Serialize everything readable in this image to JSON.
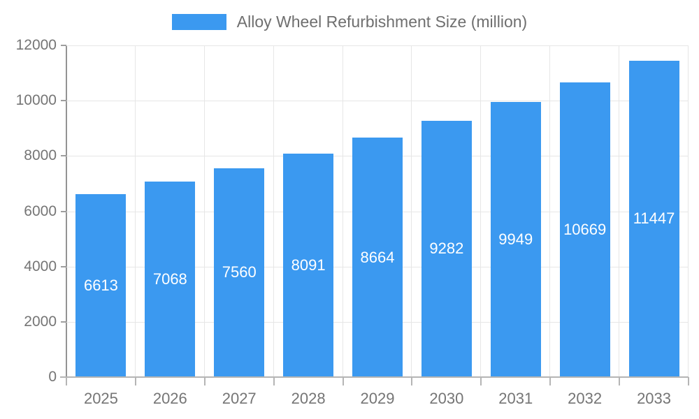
{
  "legend": {
    "label": "Alloy Wheel Refurbishment Size (million)"
  },
  "chart_data": {
    "type": "bar",
    "title": "Alloy Wheel Refurbishment Size (million)",
    "categories": [
      "2025",
      "2026",
      "2027",
      "2028",
      "2029",
      "2030",
      "2031",
      "2032",
      "2033"
    ],
    "values": [
      6613,
      7068,
      7560,
      8091,
      8664,
      9282,
      9949,
      10669,
      11447
    ],
    "xlabel": "",
    "ylabel": "",
    "ylim": [
      0,
      12000
    ],
    "ytick_step": 2000,
    "ytick_labels": [
      "0",
      "2000",
      "4000",
      "6000",
      "8000",
      "10000",
      "12000"
    ],
    "grid": true,
    "legend_position": "top",
    "value_labels": "inside-center",
    "colors": {
      "bar": "#3b99f0",
      "value_label": "#ffffff",
      "axis_text": "#757575",
      "gridline": "#e6e6e6",
      "y_axis_line": "#949494",
      "baseline": "#b5b5b5"
    }
  }
}
